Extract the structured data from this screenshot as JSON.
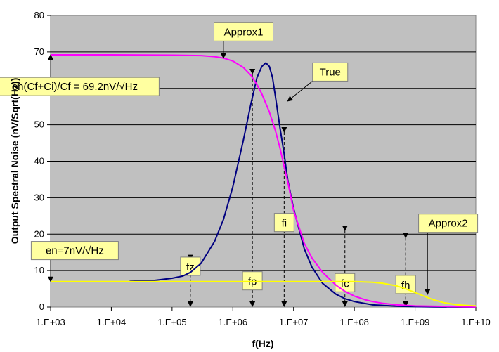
{
  "chart_data": {
    "type": "line",
    "title": "",
    "xlabel": "f(Hz)",
    "ylabel": "Output Spectral Noise (nV/Sqrt(Hz))",
    "x_scale": "log",
    "xlim": [
      1000,
      10000000000
    ],
    "ylim": [
      0,
      80
    ],
    "x_tick_labels": [
      "1.E+03",
      "1.E+04",
      "1.E+05",
      "1.E+06",
      "1.E+07",
      "1.E+08",
      "1.E+09",
      "1.E+10"
    ],
    "y_tick_labels": [
      "0",
      "10",
      "20",
      "30",
      "40",
      "50",
      "60",
      "70",
      "80"
    ],
    "grid": "horizontal",
    "plot_background": "#c0c0c0",
    "series": [
      {
        "name": "True",
        "color": "#000080",
        "x": [
          20000,
          50000,
          100000,
          150000,
          200000,
          300000,
          500000,
          700000,
          1000000,
          1500000,
          2000000,
          2500000,
          3000000,
          3500000,
          4000000,
          4500000,
          5000000,
          6000000,
          7000000,
          8000000,
          10000000,
          15000000,
          20000000,
          30000000,
          50000000,
          70000000,
          100000000,
          200000000,
          500000000,
          1000000000,
          2000000000,
          5000000000,
          10000000000
        ],
        "y": [
          7.1,
          7.3,
          7.9,
          8.5,
          9.5,
          12,
          18,
          24,
          33,
          46,
          56,
          63,
          66,
          67,
          66,
          63,
          58,
          49,
          42,
          35,
          27,
          16,
          11,
          6.5,
          3.5,
          2.3,
          1.5,
          0.6,
          0.25,
          0.12,
          0.05,
          0.02,
          0.01
        ]
      },
      {
        "name": "Approx1",
        "color": "#ff00ff",
        "x": [
          1000,
          10000,
          100000,
          300000,
          500000,
          700000,
          1000000,
          1500000,
          2000000,
          2500000,
          3000000,
          4000000,
          5000000,
          6000000,
          7000000,
          8000000,
          10000000,
          15000000,
          20000000,
          30000000,
          50000000,
          70000000,
          100000000,
          150000000,
          200000000,
          300000000,
          500000000,
          1000000000,
          10000000000
        ],
        "y": [
          69.2,
          69.2,
          69.1,
          69,
          68.7,
          68.3,
          67.5,
          65.7,
          63.5,
          61,
          58.5,
          53.5,
          48.5,
          43.5,
          38.5,
          34.5,
          26.5,
          17.5,
          13.5,
          9.5,
          6,
          4.3,
          3,
          2,
          1.5,
          1,
          0.6,
          0.3,
          0.05
        ]
      },
      {
        "name": "Approx2",
        "color": "#ffff00",
        "x": [
          1000,
          100000000,
          200000000,
          300000000,
          500000000,
          700000000,
          1000000000,
          1500000000,
          2000000000,
          3000000000,
          5000000000,
          10000000000
        ],
        "y": [
          7.0,
          7.0,
          6.8,
          6.5,
          5.8,
          5.0,
          4.0,
          2.8,
          2.0,
          1.2,
          0.6,
          0.3
        ]
      }
    ],
    "annotations": [
      {
        "label": "Approx1",
        "target_x": 700000,
        "target_y": 68.3
      },
      {
        "label": "True",
        "target_x": 8000000,
        "target_y": 56.5
      },
      {
        "label": "en(Cf+Ci)/Cf = 69.2nV/√Hz",
        "target_x": 1000,
        "target_y": 69.2
      },
      {
        "label": "Approx2",
        "target_x": 1600000000,
        "target_y": 3.5
      },
      {
        "label": "en=7nV/√Hz",
        "target_x": 1000,
        "target_y": 7
      }
    ],
    "markers": [
      {
        "label": "fz",
        "x": 200000,
        "y_top": 13
      },
      {
        "label": "fp",
        "x": 2100000,
        "y_top": 64
      },
      {
        "label": "fi",
        "x": 7000000,
        "y_top": 48
      },
      {
        "label": "fc",
        "x": 70000000,
        "y_top": 21
      },
      {
        "label": "fh",
        "x": 700000000,
        "y_top": 19
      }
    ]
  },
  "colors": {
    "callout_fill": "#ffffa0",
    "gridline": "#000000",
    "pointer": "#000000"
  }
}
